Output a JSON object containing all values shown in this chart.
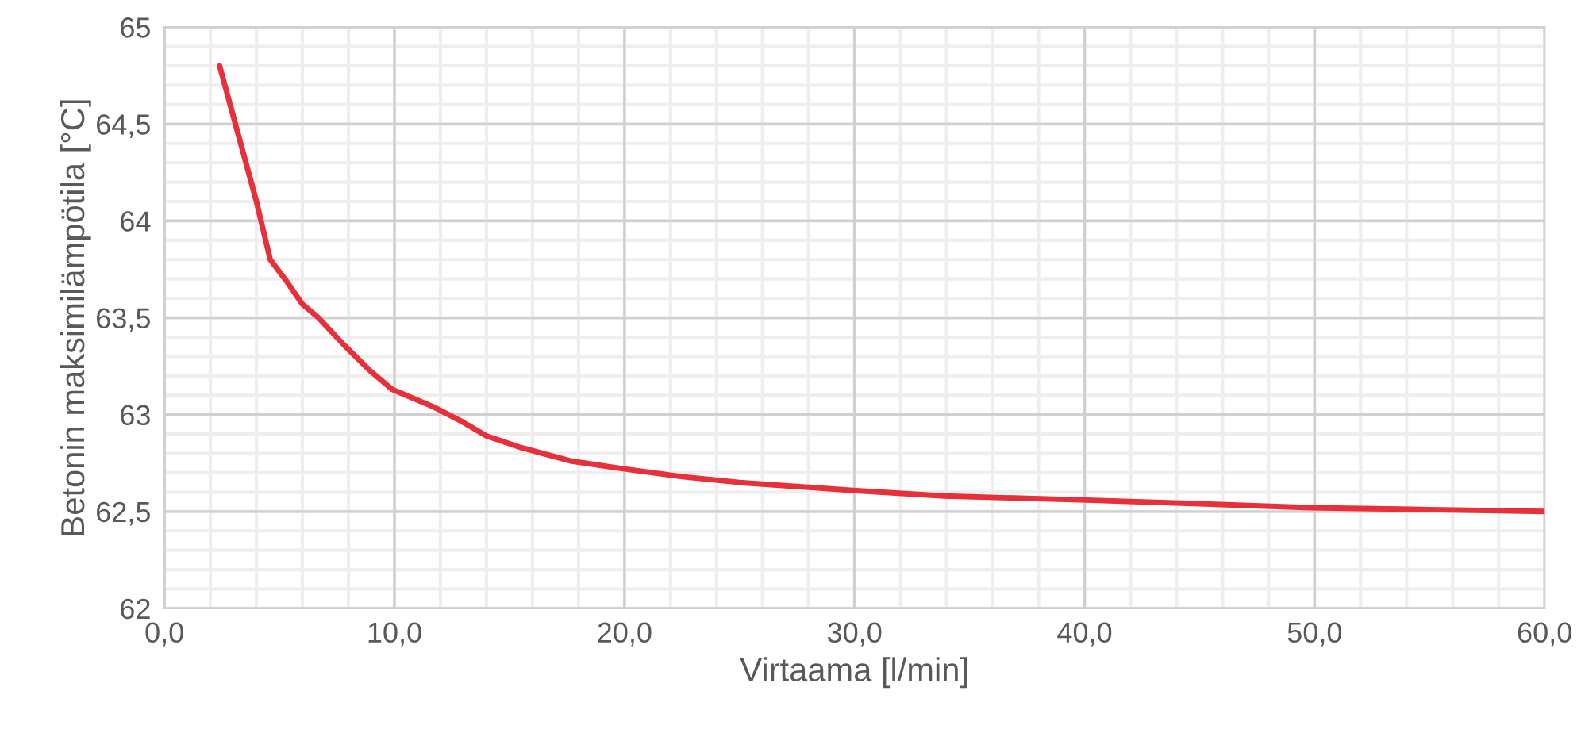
{
  "chart_data": {
    "type": "line",
    "xlabel": "Virtaama [l/min]",
    "ylabel": "Betonin maksimilämpötila [°C]",
    "series": [
      {
        "color": "#e8303a",
        "x": [
          2.4,
          3.2,
          4.0,
          4.6,
          5.3,
          6.0,
          6.7,
          7.8,
          9.0,
          9.9,
          11.7,
          13.0,
          14.0,
          15.5,
          17.7,
          20.0,
          22.5,
          25.0,
          29.8,
          33.9,
          39.8,
          45.0,
          49.8,
          55.0,
          60.0
        ],
        "values": [
          64.8,
          64.45,
          64.1,
          63.8,
          63.69,
          63.57,
          63.5,
          63.36,
          63.22,
          63.13,
          63.04,
          62.96,
          62.89,
          62.83,
          62.76,
          62.72,
          62.68,
          62.65,
          62.61,
          62.58,
          62.56,
          62.54,
          62.52,
          62.51,
          62.5
        ]
      }
    ],
    "xlim": [
      0,
      60
    ],
    "xticks": [
      {
        "value": 0,
        "label": "0,0"
      },
      {
        "value": 10,
        "label": "10,0"
      },
      {
        "value": 20,
        "label": "20,0"
      },
      {
        "value": 30,
        "label": "30,0"
      },
      {
        "value": 40,
        "label": "40,0"
      },
      {
        "value": 50,
        "label": "50,0"
      },
      {
        "value": 60,
        "label": "60,0"
      }
    ],
    "ylim": [
      62,
      65
    ],
    "yticks": [
      62,
      {
        "value": 62.5,
        "label": "62,5"
      },
      63,
      {
        "value": 63.5,
        "label": "63,5"
      },
      64,
      {
        "value": 64.5,
        "label": "64,5"
      },
      65
    ],
    "grid": true,
    "legend": false,
    "marker": "none",
    "line_style": "solid"
  }
}
